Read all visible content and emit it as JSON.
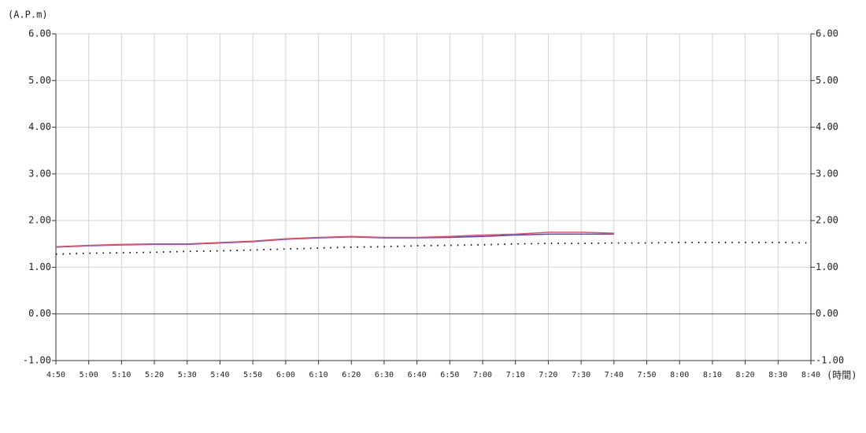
{
  "chart_data": {
    "type": "line",
    "y_label": "(A.P.m)",
    "x_label": "(時間)",
    "categories": [
      "4:50",
      "5:00",
      "5:10",
      "5:20",
      "5:30",
      "5:40",
      "5:50",
      "6:00",
      "6:10",
      "6:20",
      "6:30",
      "6:40",
      "6:50",
      "7:00",
      "7:10",
      "7:20",
      "7:30",
      "7:40",
      "7:50",
      "8:00",
      "8:10",
      "8:20",
      "8:30",
      "8:40"
    ],
    "series": [
      {
        "color": "#3c46dc",
        "style": "solid",
        "values": [
          1.43,
          1.46,
          1.48,
          1.49,
          1.49,
          1.52,
          1.55,
          1.6,
          1.63,
          1.65,
          1.63,
          1.63,
          1.64,
          1.66,
          1.69,
          1.71,
          1.71,
          1.71,
          null,
          null,
          null,
          null,
          null,
          null
        ]
      },
      {
        "color": "#f0506e",
        "style": "solid",
        "values": [
          1.44,
          1.47,
          1.49,
          1.5,
          1.5,
          1.53,
          1.56,
          1.61,
          1.64,
          1.66,
          1.64,
          1.64,
          1.66,
          1.69,
          1.71,
          1.75,
          1.75,
          1.73,
          null,
          null,
          null,
          null,
          null,
          null
        ]
      },
      {
        "color": "#000000",
        "style": "dotted",
        "values": [
          1.28,
          1.3,
          1.31,
          1.32,
          1.34,
          1.35,
          1.37,
          1.39,
          1.41,
          1.43,
          1.44,
          1.46,
          1.47,
          1.48,
          1.5,
          1.51,
          1.51,
          1.52,
          1.52,
          1.53,
          1.53,
          1.53,
          1.53,
          1.52
        ]
      }
    ],
    "ylim": [
      -1,
      6
    ],
    "yticks": [
      {
        "value": -1,
        "label": "-1.00"
      },
      {
        "value": 0,
        "label": "0.00"
      },
      {
        "value": 1,
        "label": "1.00"
      },
      {
        "value": 2,
        "label": "2.00"
      },
      {
        "value": 3,
        "label": "3.00"
      },
      {
        "value": 4,
        "label": "4.00"
      },
      {
        "value": 5,
        "label": "5.00"
      },
      {
        "value": 6,
        "label": "6.00"
      }
    ],
    "y2lim": [
      -1,
      6
    ],
    "y2ticks": [
      {
        "value": -1,
        "label": "-1.00"
      },
      {
        "value": 0,
        "label": "0.00"
      },
      {
        "value": 1,
        "label": "1.00"
      },
      {
        "value": 2,
        "label": "2.00"
      },
      {
        "value": 3,
        "label": "3.00"
      },
      {
        "value": 4,
        "label": "4.00"
      },
      {
        "value": 5,
        "label": "5.00"
      },
      {
        "value": 6,
        "label": "6.00"
      }
    ],
    "grid": true
  }
}
